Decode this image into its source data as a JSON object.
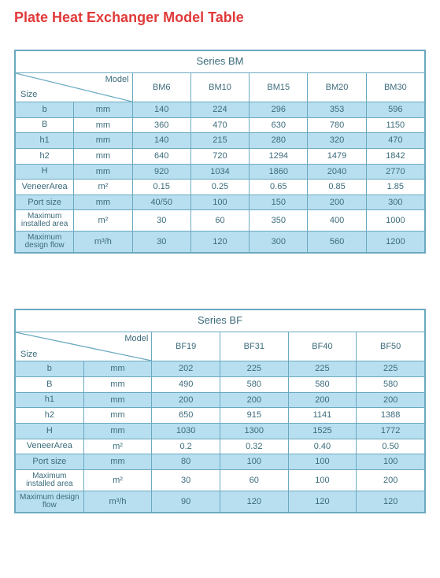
{
  "page_title": "Plate Heat Exchanger Model Table",
  "colors": {
    "title": "#e03a3a",
    "text": "#3b6b7a",
    "border": "#6aa9c0",
    "band_even": "#b8dff0",
    "band_odd": "#ffffff",
    "background": "#ffffff"
  },
  "labels": {
    "model": "Model",
    "size": "Size"
  },
  "tables": [
    {
      "series_title": "Series BM",
      "models": [
        "BM6",
        "BM10",
        "BM15",
        "BM20",
        "BM30"
      ],
      "column_widths": {
        "label": 70,
        "unit": 42
      },
      "rows": [
        {
          "label": "b",
          "unit": "mm",
          "values": [
            "140",
            "224",
            "296",
            "353",
            "596"
          ]
        },
        {
          "label": "B",
          "unit": "mm",
          "values": [
            "360",
            "470",
            "630",
            "780",
            "1150"
          ]
        },
        {
          "label": "h1",
          "unit": "mm",
          "values": [
            "140",
            "215",
            "280",
            "320",
            "470"
          ]
        },
        {
          "label": "h2",
          "unit": "mm",
          "values": [
            "640",
            "720",
            "1294",
            "1479",
            "1842"
          ]
        },
        {
          "label": "H",
          "unit": "mm",
          "values": [
            "920",
            "1034",
            "1860",
            "2040",
            "2770"
          ]
        },
        {
          "label": "VeneerArea",
          "unit": "m²",
          "values": [
            "0.15",
            "0.25",
            "0.65",
            "0.85",
            "1.85"
          ]
        },
        {
          "label": "Port size",
          "unit": "mm",
          "values": [
            "40/50",
            "100",
            "150",
            "200",
            "300"
          ]
        },
        {
          "label": "Maximum installed area",
          "unit": "m²",
          "small": true,
          "values": [
            "30",
            "60",
            "350",
            "400",
            "1000"
          ]
        },
        {
          "label": "Maximum design flow",
          "unit": "m³/h",
          "small": true,
          "values": [
            "30",
            "120",
            "300",
            "560",
            "1200"
          ]
        }
      ]
    },
    {
      "series_title": "Series BF",
      "models": [
        "BF19",
        "BF31",
        "BF40",
        "BF50"
      ],
      "column_widths": {
        "label": 70,
        "unit": 42
      },
      "rows": [
        {
          "label": "b",
          "unit": "mm",
          "values": [
            "202",
            "225",
            "225",
            "225"
          ]
        },
        {
          "label": "B",
          "unit": "mm",
          "values": [
            "490",
            "580",
            "580",
            "580"
          ]
        },
        {
          "label": "h1",
          "unit": "mm",
          "values": [
            "200",
            "200",
            "200",
            "200"
          ]
        },
        {
          "label": "h2",
          "unit": "mm",
          "values": [
            "650",
            "915",
            "1141",
            "1388"
          ]
        },
        {
          "label": "H",
          "unit": "mm",
          "values": [
            "1030",
            "1300",
            "1525",
            "1772"
          ]
        },
        {
          "label": "VeneerArea",
          "unit": "m²",
          "values": [
            "0.2",
            "0.32",
            "0.40",
            "0.50"
          ]
        },
        {
          "label": "Port size",
          "unit": "mm",
          "values": [
            "80",
            "100",
            "100",
            "100"
          ]
        },
        {
          "label": "Maximum installed area",
          "unit": "m²",
          "small": true,
          "values": [
            "30",
            "60",
            "100",
            "200"
          ]
        },
        {
          "label": "Maximum design flow",
          "unit": "m³/h",
          "small": true,
          "values": [
            "90",
            "120",
            "120",
            "120"
          ]
        }
      ]
    }
  ]
}
